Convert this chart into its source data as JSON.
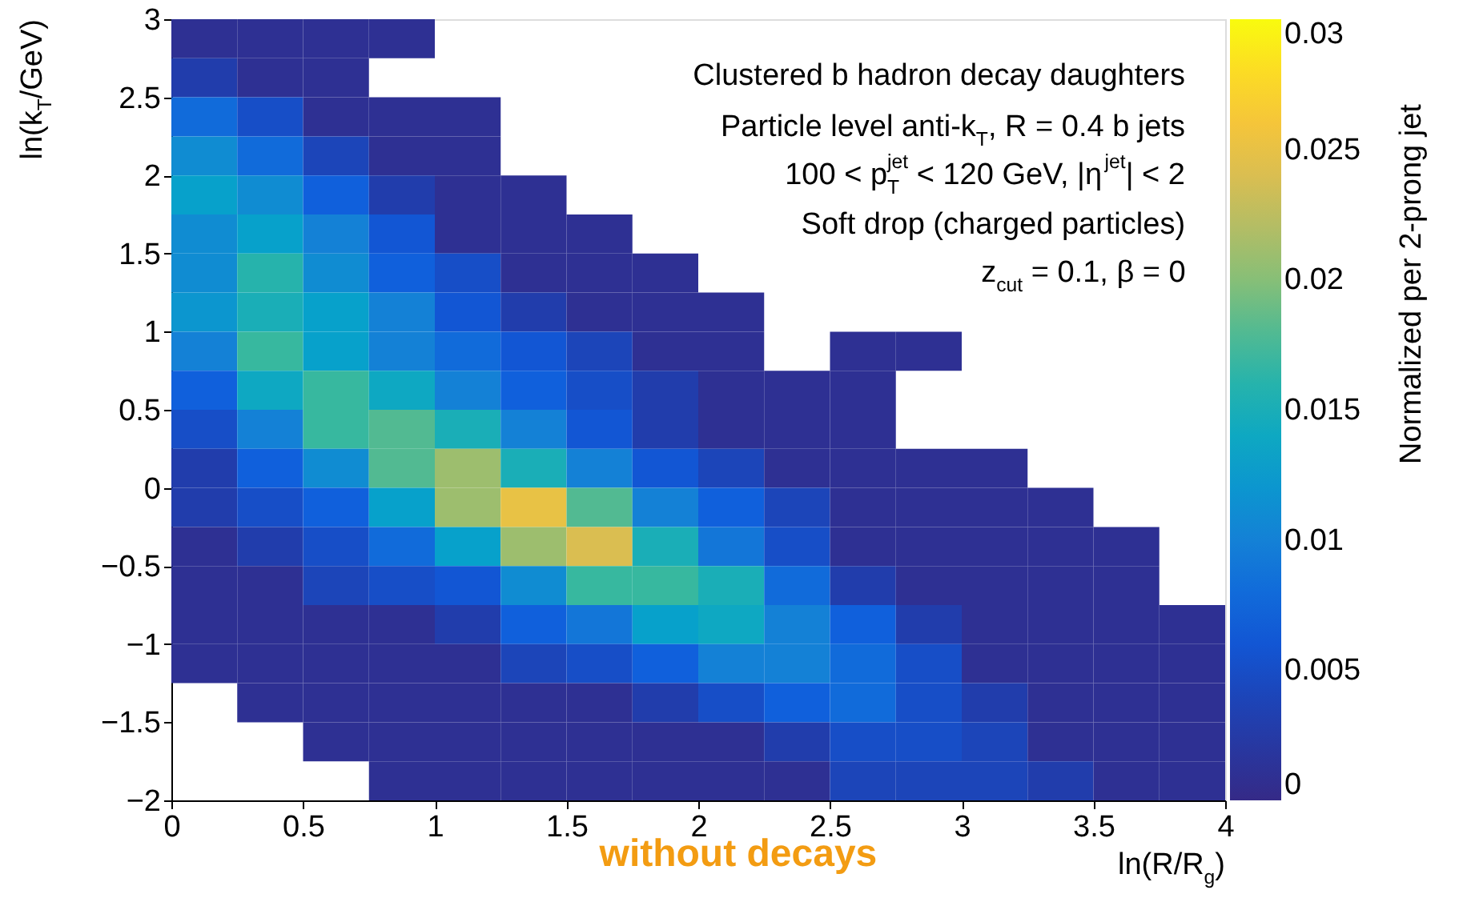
{
  "chart_data": {
    "type": "heatmap",
    "xlabel": "ln(R/R$_{g}$)",
    "ylabel": "ln(k$_{T}$/GeV)",
    "clabel": "Normalized per 2-prong jet",
    "annotations": [
      "Clustered b hadron decay daughters",
      "Particle level anti-k$_{T}$, R = 0.4 b jets",
      "100 < p$^{jet}$$_{T}$ < 120 GeV, |η$^{jet}$| < 2",
      "Soft drop (charged particles)",
      "z$_{cut}$ = 0.1, β = 0",
      "without decays"
    ],
    "x": [
      0.125,
      0.375,
      0.625,
      0.875,
      1.125,
      1.375,
      1.625,
      1.875,
      2.125,
      2.375,
      2.625,
      2.875,
      3.125,
      3.375,
      3.625,
      3.875
    ],
    "y": [
      2.875,
      2.625,
      2.375,
      2.125,
      1.875,
      1.625,
      1.375,
      1.125,
      0.875,
      0.625,
      0.375,
      0.125,
      -0.125,
      -0.375,
      -0.625,
      -0.875,
      -1.125,
      -1.375,
      -1.625,
      -1.875
    ],
    "cells": [
      [
        0.001,
        0.001,
        0.001,
        0.001,
        null,
        null,
        null,
        null,
        null,
        null,
        null,
        null,
        null,
        null,
        null,
        null
      ],
      [
        0.003,
        0.001,
        0.001,
        null,
        null,
        null,
        null,
        null,
        null,
        null,
        null,
        null,
        null,
        null,
        null,
        null
      ],
      [
        0.008,
        0.005,
        0.001,
        0.001,
        0.001,
        null,
        null,
        null,
        null,
        null,
        null,
        null,
        null,
        null,
        null,
        null
      ],
      [
        0.011,
        0.008,
        0.004,
        0.001,
        0.001,
        null,
        null,
        null,
        null,
        null,
        null,
        null,
        null,
        null,
        null,
        null
      ],
      [
        0.013,
        0.011,
        0.007,
        0.003,
        0.001,
        0.001,
        null,
        null,
        null,
        null,
        null,
        null,
        null,
        null,
        null,
        null
      ],
      [
        0.011,
        0.013,
        0.01,
        0.006,
        0.001,
        0.001,
        0.001,
        null,
        null,
        null,
        null,
        null,
        null,
        null,
        null,
        null
      ],
      [
        0.011,
        0.016,
        0.011,
        0.007,
        0.005,
        0.001,
        0.001,
        0.001,
        null,
        null,
        null,
        null,
        null,
        null,
        null,
        null
      ],
      [
        0.012,
        0.015,
        0.013,
        0.01,
        0.006,
        0.003,
        0.001,
        0.001,
        0.001,
        null,
        null,
        null,
        null,
        null,
        null,
        null
      ],
      [
        0.01,
        0.017,
        0.013,
        0.01,
        0.008,
        0.006,
        0.004,
        0.001,
        0.001,
        null,
        0.001,
        0.001,
        null,
        null,
        null,
        null
      ],
      [
        0.007,
        0.014,
        0.017,
        0.014,
        0.01,
        0.007,
        0.005,
        0.003,
        0.001,
        0.001,
        0.001,
        null,
        null,
        null,
        null,
        null
      ],
      [
        0.005,
        0.01,
        0.017,
        0.018,
        0.015,
        0.01,
        0.006,
        0.003,
        0.001,
        0.001,
        0.001,
        null,
        null,
        null,
        null,
        null
      ],
      [
        0.003,
        0.007,
        0.011,
        0.018,
        0.021,
        0.015,
        0.01,
        0.006,
        0.004,
        0.001,
        0.001,
        0.001,
        0.001,
        null,
        null,
        null
      ],
      [
        0.003,
        0.005,
        0.007,
        0.013,
        0.021,
        0.025,
        0.018,
        0.01,
        0.007,
        0.004,
        0.001,
        0.001,
        0.001,
        0.001,
        null,
        null
      ],
      [
        0.001,
        0.003,
        0.005,
        0.008,
        0.013,
        0.021,
        0.024,
        0.015,
        0.009,
        0.005,
        0.001,
        0.001,
        0.001,
        0.001,
        0.001,
        null
      ],
      [
        0.001,
        0.001,
        0.004,
        0.005,
        0.006,
        0.011,
        0.017,
        0.017,
        0.015,
        0.008,
        0.003,
        0.001,
        0.001,
        0.001,
        0.001,
        null
      ],
      [
        0.001,
        0.001,
        0.001,
        0.001,
        0.003,
        0.007,
        0.009,
        0.013,
        0.014,
        0.01,
        0.007,
        0.003,
        0.001,
        0.001,
        0.001,
        0.001
      ],
      [
        0.001,
        0.001,
        0.001,
        0.001,
        0.001,
        0.004,
        0.005,
        0.007,
        0.01,
        0.01,
        0.008,
        0.005,
        0.001,
        0.001,
        0.001,
        0.001
      ],
      [
        null,
        0.001,
        0.001,
        0.001,
        0.001,
        0.001,
        0.001,
        0.003,
        0.005,
        0.007,
        0.008,
        0.005,
        0.003,
        0.001,
        0.001,
        0.001
      ],
      [
        null,
        null,
        0.001,
        0.001,
        0.001,
        0.001,
        0.001,
        0.001,
        0.001,
        0.003,
        0.005,
        0.005,
        0.004,
        0.001,
        0.001,
        0.001
      ],
      [
        null,
        null,
        null,
        0.001,
        0.001,
        0.001,
        0.001,
        0.001,
        0.001,
        0.001,
        0.004,
        0.004,
        0.004,
        0.003,
        0.001,
        0.001
      ]
    ],
    "colors": [
      "#352a87",
      "#1f3fb0",
      "#0f5cdd",
      "#1481d6",
      "#06a4ca",
      "#2eb7a4",
      "#87bf77",
      "#d1bb59",
      "#fec832",
      "#f9fb0e"
    ],
    "xlim": [
      0,
      4
    ],
    "ylim": [
      -2,
      3
    ],
    "clim": [
      0,
      0.03
    ],
    "xticks": [
      0,
      0.5,
      1,
      1.5,
      2,
      2.5,
      3,
      3.5,
      4
    ],
    "yticks": [
      {
        "value": -2,
        "label": "−2"
      },
      {
        "value": -1.5,
        "label": "−1.5"
      },
      {
        "value": -1,
        "label": "−1"
      },
      {
        "value": -0.5,
        "label": "−0.5"
      },
      0,
      0.5,
      1,
      1.5,
      2,
      2.5,
      3
    ],
    "cticks": [
      0,
      0.005,
      0.01,
      0.015,
      0.02,
      0.025,
      0.03
    ]
  }
}
